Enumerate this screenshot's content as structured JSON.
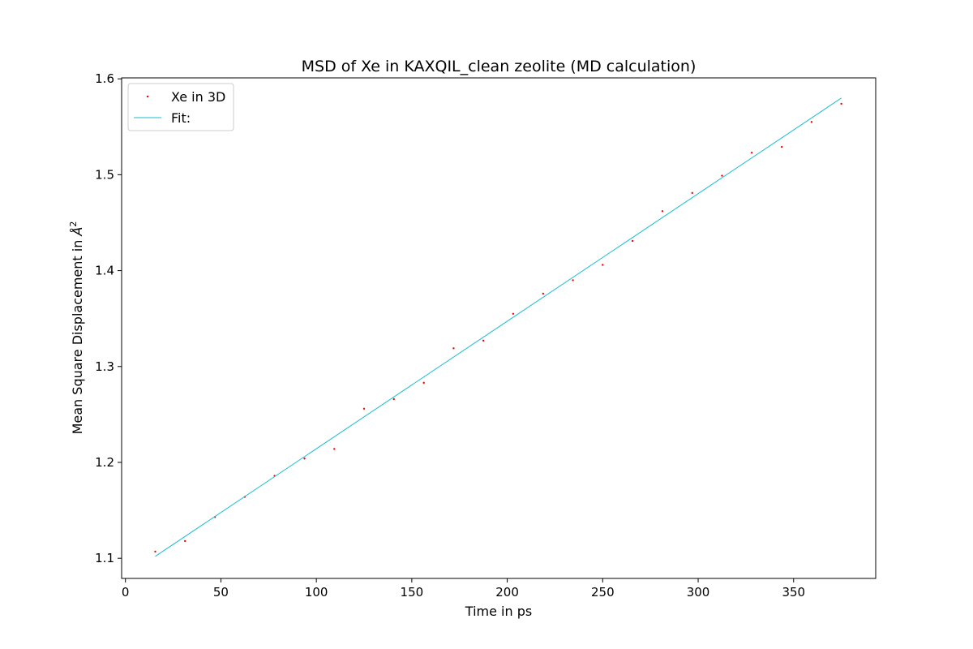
{
  "chart_data": {
    "type": "scatter",
    "title": "MSD of Xe in KAXQIL_clean zeolite (MD calculation)",
    "xlabel": "Time in ps",
    "ylabel_main": "Mean Square Displacement in ",
    "ylabel_unit": "Å",
    "ylabel_exp": "2",
    "xlim": [
      -2,
      393
    ],
    "ylim": [
      1.079,
      1.601
    ],
    "xticks": [
      0,
      50,
      100,
      150,
      200,
      250,
      300,
      350
    ],
    "xtick_labels": [
      "0",
      "50",
      "100",
      "150",
      "200",
      "250",
      "300",
      "350"
    ],
    "yticks": [
      1.1,
      1.2,
      1.3,
      1.4,
      1.5,
      1.6
    ],
    "ytick_labels": [
      "1.1",
      "1.2",
      "1.3",
      "1.4",
      "1.5",
      "1.6"
    ],
    "grid": false,
    "legend_position": "top-left",
    "series": [
      {
        "name": "Xe in 3D",
        "kind": "points",
        "color": "#ff0000",
        "x": [
          15.6,
          31.2,
          46.9,
          62.5,
          78.1,
          93.8,
          109.4,
          125.0,
          140.6,
          156.3,
          171.9,
          187.5,
          203.1,
          218.8,
          234.4,
          250.0,
          265.6,
          281.3,
          296.9,
          312.5,
          328.1,
          343.8,
          359.4,
          375.0
        ],
        "y": [
          1.107,
          1.118,
          1.143,
          1.164,
          1.186,
          1.204,
          1.214,
          1.256,
          1.266,
          1.283,
          1.319,
          1.327,
          1.355,
          1.376,
          1.39,
          1.406,
          1.431,
          1.462,
          1.481,
          1.499,
          1.523,
          1.529,
          1.555,
          1.574
        ]
      },
      {
        "name": "Fit:",
        "kind": "line",
        "color": "#17becf",
        "x": [
          15.6,
          375.0
        ],
        "y": [
          1.102,
          1.58
        ]
      }
    ]
  }
}
